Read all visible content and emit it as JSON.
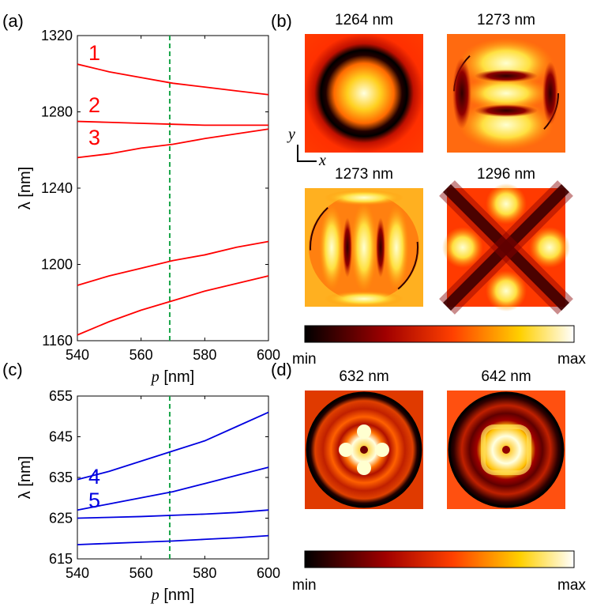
{
  "colors": {
    "red_curve": "#ff0000",
    "blue_curve": "#0000e0",
    "marker_line": "#1aa64a"
  },
  "panels": {
    "a": "(a)",
    "b": "(b)",
    "c": "(c)",
    "d": "(d)"
  },
  "chart_data": [
    {
      "type": "line",
      "panel": "(a)",
      "xlabel": "p [nm]",
      "ylabel": "λ [nm]",
      "xlim": [
        540,
        600
      ],
      "ylim": [
        1160,
        1320
      ],
      "xticks": [
        "540",
        "560",
        "580",
        "600"
      ],
      "yticks": [
        "1160",
        "1200",
        "1240",
        "1280",
        "1320"
      ],
      "marker_x": 569,
      "series": [
        {
          "name": "1",
          "x": [
            540,
            550,
            560,
            570,
            580,
            590,
            600
          ],
          "y": [
            1305,
            1301,
            1298,
            1295,
            1293,
            1291,
            1289
          ]
        },
        {
          "name": "2",
          "x": [
            540,
            550,
            560,
            570,
            580,
            590,
            600
          ],
          "y": [
            1275,
            1274.5,
            1274,
            1273.5,
            1273,
            1273,
            1273
          ]
        },
        {
          "name": "3",
          "x": [
            540,
            550,
            560,
            570,
            580,
            590,
            600
          ],
          "y": [
            1256,
            1258,
            1261,
            1263,
            1266,
            1268.5,
            1271
          ]
        },
        {
          "name": "",
          "x": [
            540,
            550,
            560,
            570,
            580,
            590,
            600
          ],
          "y": [
            1189,
            1194,
            1198,
            1202,
            1205,
            1209,
            1212
          ]
        },
        {
          "name": "",
          "x": [
            540,
            550,
            560,
            570,
            580,
            590,
            600
          ],
          "y": [
            1163,
            1170,
            1176,
            1181,
            1186,
            1190,
            1194
          ]
        }
      ]
    },
    {
      "type": "line",
      "panel": "(c)",
      "xlabel": "p [nm]",
      "ylabel": "λ [nm]",
      "xlim": [
        540,
        600
      ],
      "ylim": [
        615,
        655
      ],
      "xticks": [
        "540",
        "560",
        "580",
        "600"
      ],
      "yticks": [
        "615",
        "625",
        "635",
        "645",
        "655"
      ],
      "marker_x": 569,
      "series": [
        {
          "name": "4",
          "x": [
            540,
            550,
            560,
            570,
            580,
            590,
            600
          ],
          "y": [
            634.5,
            636.5,
            639,
            641.5,
            644,
            647.5,
            651
          ]
        },
        {
          "name": "5",
          "x": [
            540,
            550,
            560,
            570,
            580,
            590,
            600
          ],
          "y": [
            627,
            628.5,
            630,
            631.5,
            633.5,
            635.5,
            637.5
          ]
        },
        {
          "name": "",
          "x": [
            540,
            550,
            560,
            570,
            580,
            590,
            600
          ],
          "y": [
            625,
            625.2,
            625.4,
            625.7,
            626,
            626.4,
            627
          ]
        },
        {
          "name": "",
          "x": [
            540,
            550,
            560,
            570,
            580,
            590,
            600
          ],
          "y": [
            618.5,
            618.8,
            619.1,
            619.4,
            619.8,
            620.2,
            620.7
          ]
        }
      ]
    }
  ],
  "field_maps_b": {
    "titles": [
      "1264 nm",
      "1273 nm",
      "1273 nm",
      "1296 nm"
    ],
    "axis_y": "y",
    "axis_x": "x",
    "colorbar_min": "min",
    "colorbar_max": "max"
  },
  "field_maps_d": {
    "titles": [
      "632 nm",
      "642 nm"
    ],
    "colorbar_min": "min",
    "colorbar_max": "max"
  }
}
